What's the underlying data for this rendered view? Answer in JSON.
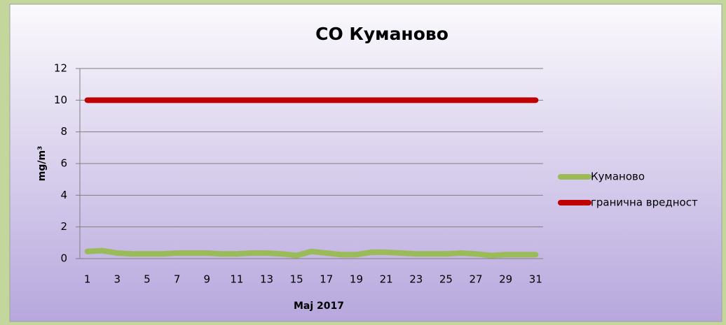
{
  "chart_data": {
    "type": "line",
    "title": "CO Куманово",
    "x_label": "Maj 2017",
    "y_label": "mg/m³",
    "categories": [
      1,
      null,
      3,
      null,
      5,
      null,
      7,
      null,
      9,
      null,
      11,
      null,
      13,
      null,
      15,
      null,
      17,
      null,
      19,
      null,
      21,
      null,
      23,
      null,
      25,
      null,
      27,
      null,
      29,
      null,
      31
    ],
    "series": [
      {
        "name": "Куманово",
        "color": "#9bbb59",
        "values": [
          0.45,
          0.5,
          0.35,
          0.3,
          0.3,
          0.3,
          0.35,
          0.35,
          0.35,
          0.3,
          0.3,
          0.35,
          0.35,
          0.3,
          0.2,
          0.45,
          0.35,
          0.25,
          0.25,
          0.4,
          0.4,
          0.35,
          0.3,
          0.3,
          0.3,
          0.35,
          0.3,
          0.2,
          0.25,
          0.25,
          0.25
        ]
      },
      {
        "name": "гранична вредност",
        "color": "#c00000",
        "values": [
          10,
          10,
          10,
          10,
          10,
          10,
          10,
          10,
          10,
          10,
          10,
          10,
          10,
          10,
          10,
          10,
          10,
          10,
          10,
          10,
          10,
          10,
          10,
          10,
          10,
          10,
          10,
          10,
          10,
          10,
          10
        ]
      }
    ],
    "ylim": [
      0,
      12
    ],
    "yticks": [
      0,
      2,
      4,
      6,
      8,
      10,
      12
    ],
    "grid": true,
    "legend": "right"
  }
}
